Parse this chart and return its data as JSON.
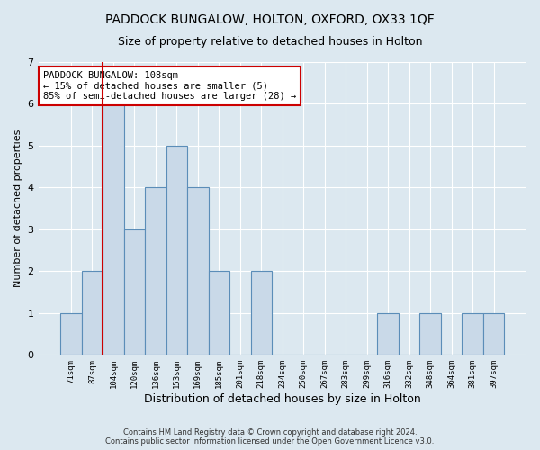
{
  "title": "PADDOCK BUNGALOW, HOLTON, OXFORD, OX33 1QF",
  "subtitle": "Size of property relative to detached houses in Holton",
  "xlabel": "Distribution of detached houses by size in Holton",
  "ylabel": "Number of detached properties",
  "bins": [
    "71sqm",
    "87sqm",
    "104sqm",
    "120sqm",
    "136sqm",
    "153sqm",
    "169sqm",
    "185sqm",
    "201sqm",
    "218sqm",
    "234sqm",
    "250sqm",
    "267sqm",
    "283sqm",
    "299sqm",
    "316sqm",
    "332sqm",
    "348sqm",
    "364sqm",
    "381sqm",
    "397sqm"
  ],
  "bar_heights": [
    1,
    2,
    6,
    3,
    4,
    5,
    4,
    2,
    0,
    2,
    0,
    0,
    0,
    0,
    0,
    1,
    0,
    1,
    0,
    1,
    1
  ],
  "bar_color": "#c9d9e8",
  "bar_edge_color": "#5b8db8",
  "property_line_color": "#cc0000",
  "annotation_text": "PADDOCK BUNGALOW: 108sqm\n← 15% of detached houses are smaller (5)\n85% of semi-detached houses are larger (28) →",
  "annotation_box_color": "#ffffff",
  "annotation_box_edge": "#cc0000",
  "footer": "Contains HM Land Registry data © Crown copyright and database right 2024.\nContains public sector information licensed under the Open Government Licence v3.0.",
  "background_color": "#dce8f0",
  "fig_color": "#dce8f0",
  "ylim": [
    0,
    7
  ],
  "title_fontsize": 10,
  "subtitle_fontsize": 9,
  "xlabel_fontsize": 9,
  "ylabel_fontsize": 8
}
